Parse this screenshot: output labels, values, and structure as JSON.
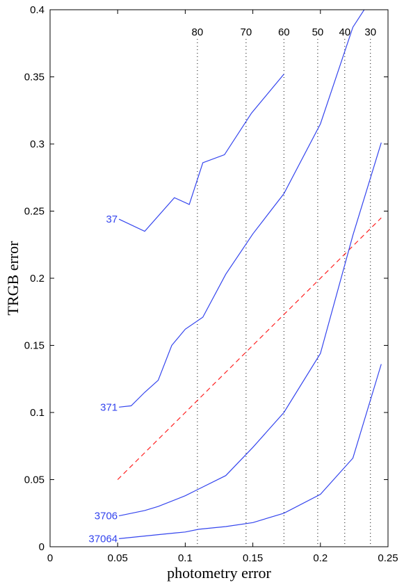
{
  "chart_data": {
    "type": "line",
    "xlabel": "photometry error",
    "ylabel": "TRGB error",
    "xlim": [
      0,
      0.25
    ],
    "ylim": [
      0,
      0.4
    ],
    "x_ticks": [
      0,
      0.05,
      0.1,
      0.15,
      0.2,
      0.25
    ],
    "x_tick_labels": [
      "0",
      "0.05",
      "0.1",
      "0.15",
      "0.2",
      "0.25"
    ],
    "y_ticks": [
      0,
      0.05,
      0.1,
      0.15,
      0.2,
      0.25,
      0.3,
      0.35,
      0.4
    ],
    "y_tick_labels": [
      "0",
      "0.05",
      "0.1",
      "0.15",
      "0.2",
      "0.25",
      "0.3",
      "0.35",
      "0.4"
    ],
    "grid": false,
    "series_color": "#3344ee",
    "reference_line_color": "#ff2020",
    "reference_lines": [
      {
        "label": "80",
        "x": 0.109
      },
      {
        "label": "70",
        "x": 0.145
      },
      {
        "label": "60",
        "x": 0.173
      },
      {
        "label": "50",
        "x": 0.198
      },
      {
        "label": "40",
        "x": 0.218
      },
      {
        "label": "30",
        "x": 0.237
      }
    ],
    "diagonal_reference": {
      "x": [
        0.05,
        0.245
      ],
      "y": [
        0.05,
        0.245
      ]
    },
    "series": [
      {
        "name": "37",
        "x": [
          0.051,
          0.07,
          0.092,
          0.103,
          0.113,
          0.129,
          0.149,
          0.173
        ],
        "y": [
          0.244,
          0.235,
          0.26,
          0.255,
          0.286,
          0.292,
          0.323,
          0.352
        ]
      },
      {
        "name": "371",
        "x": [
          0.051,
          0.06,
          0.07,
          0.08,
          0.09,
          0.1,
          0.113,
          0.13,
          0.15,
          0.173,
          0.2,
          0.224,
          0.233
        ],
        "y": [
          0.104,
          0.105,
          0.115,
          0.124,
          0.15,
          0.162,
          0.171,
          0.203,
          0.233,
          0.263,
          0.315,
          0.387,
          0.401
        ]
      },
      {
        "name": "3706",
        "x": [
          0.051,
          0.07,
          0.08,
          0.1,
          0.11,
          0.13,
          0.15,
          0.173,
          0.2,
          0.224,
          0.245
        ],
        "y": [
          0.023,
          0.027,
          0.03,
          0.038,
          0.043,
          0.053,
          0.074,
          0.1,
          0.144,
          0.232,
          0.301
        ]
      },
      {
        "name": "37064",
        "x": [
          0.051,
          0.08,
          0.1,
          0.11,
          0.13,
          0.15,
          0.173,
          0.2,
          0.224,
          0.245
        ],
        "y": [
          0.006,
          0.009,
          0.011,
          0.013,
          0.015,
          0.018,
          0.025,
          0.039,
          0.066,
          0.136
        ]
      }
    ]
  }
}
